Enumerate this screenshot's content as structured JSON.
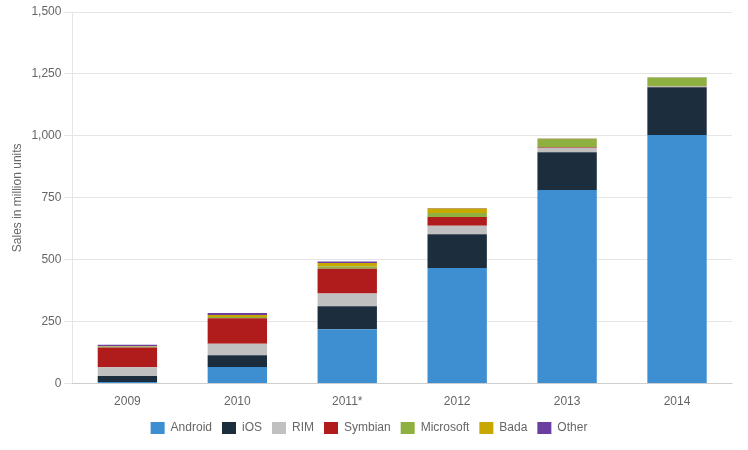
{
  "chart_data": {
    "type": "bar",
    "stacked": true,
    "ylabel": "Sales in million units",
    "categories": [
      "2009",
      "2010",
      "2011*",
      "2012",
      "2013",
      "2014"
    ],
    "series": [
      {
        "name": "Android",
        "color": "#3d8fd1",
        "values": [
          6,
          67,
          219,
          467,
          781,
          1004
        ]
      },
      {
        "name": "iOS",
        "color": "#1c2e3e",
        "values": [
          25,
          47,
          93,
          136,
          153,
          192
        ]
      },
      {
        "name": "RIM",
        "color": "#c0c0c0",
        "values": [
          35,
          47,
          52,
          34,
          18,
          3
        ]
      },
      {
        "name": "Symbian",
        "color": "#b01c1c",
        "values": [
          80,
          103,
          100,
          35,
          3,
          1
        ]
      },
      {
        "name": "Microsoft",
        "color": "#8db040",
        "values": [
          4,
          5,
          9,
          17,
          32,
          36
        ]
      },
      {
        "name": "Bada",
        "color": "#c8a800",
        "values": [
          1,
          8,
          14,
          18,
          1,
          0
        ]
      },
      {
        "name": "Other",
        "color": "#6b3fa0",
        "values": [
          6,
          8,
          6,
          2,
          1,
          1
        ]
      }
    ],
    "ylim": [
      0,
      1500
    ],
    "yticks": [
      0,
      250,
      500,
      750,
      {
        "value": 1000,
        "label": "1,000"
      },
      {
        "value": 1250,
        "label": "1,250"
      },
      {
        "value": 1500,
        "label": "1,500"
      }
    ],
    "grid": true,
    "legend": "bottom"
  }
}
